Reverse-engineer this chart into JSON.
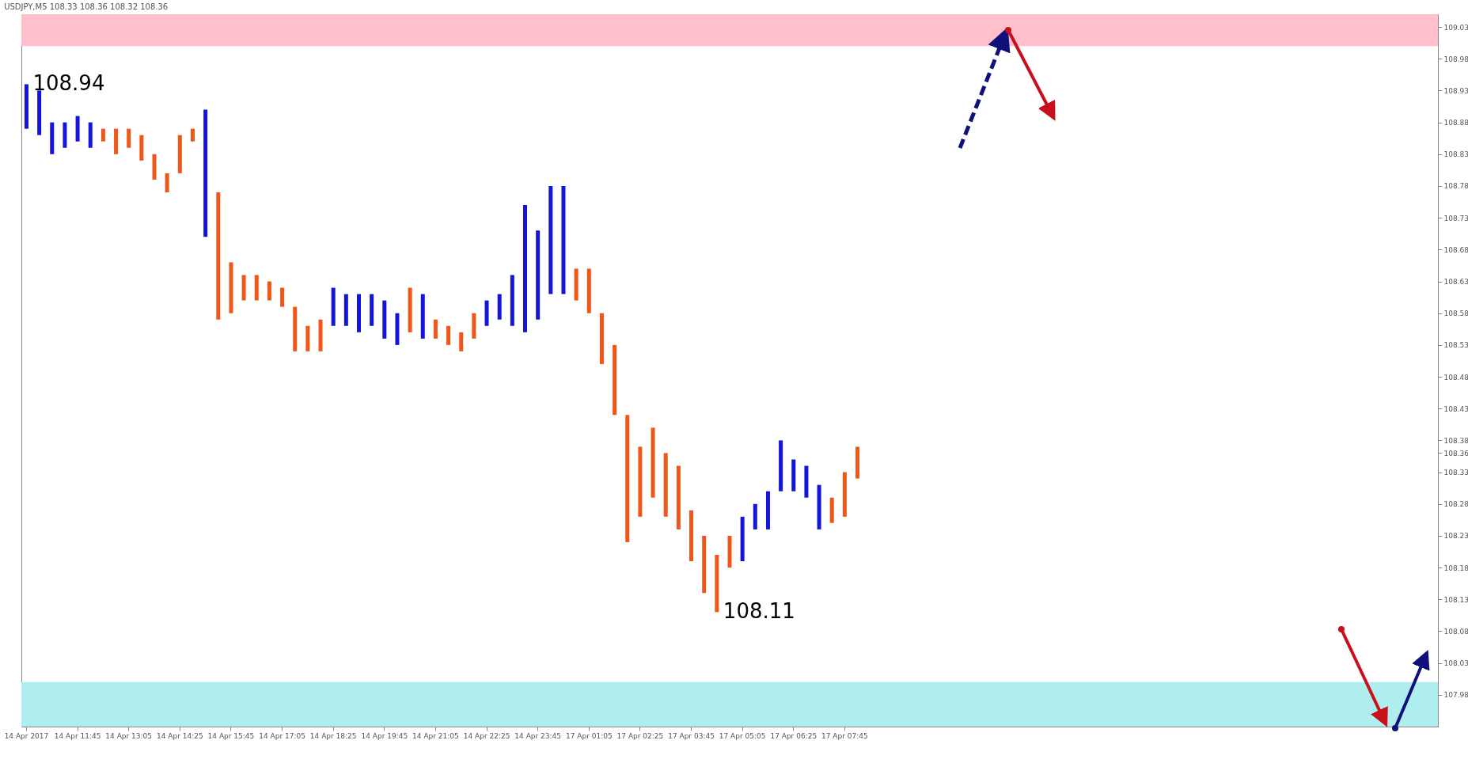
{
  "chart_data": {
    "type": "bar",
    "title": "USDJPY,M5 108.33 108.36 108.32 108.36",
    "categories": [
      "14 Apr 2017",
      null,
      null,
      null,
      "14 Apr 11:45",
      null,
      null,
      null,
      "14 Apr 13:05",
      null,
      null,
      null,
      "14 Apr 14:25",
      null,
      null,
      null,
      "14 Apr 15:45",
      null,
      null,
      null,
      "14 Apr 17:05",
      null,
      null,
      null,
      "14 Apr 18:25",
      null,
      null,
      null,
      "14 Apr 19:45",
      null,
      null,
      null,
      "14 Apr 21:05",
      null,
      null,
      null,
      "14 Apr 22:25",
      null,
      null,
      null,
      "14 Apr 23:45",
      null,
      null,
      null,
      "17 Apr 01:05",
      null,
      null,
      null,
      "17 Apr 02:25",
      null,
      null,
      null,
      "17 Apr 03:45",
      null,
      null,
      null,
      "17 Apr 05:05",
      null,
      null,
      null,
      "17 Apr 06:25",
      null,
      null,
      null,
      "17 Apr 07:45",
      null,
      null,
      null,
      null,
      null,
      null,
      null,
      null,
      null,
      null,
      null,
      null,
      null,
      null,
      null,
      null,
      null,
      null,
      null,
      null,
      null,
      null,
      null,
      null,
      null,
      null,
      null,
      null,
      null,
      null,
      null,
      null,
      null,
      null,
      null,
      null,
      null,
      null,
      null,
      null,
      null,
      null,
      null,
      null,
      null,
      null
    ],
    "base": [
      108.87,
      108.86,
      108.83,
      108.84,
      108.85,
      108.84,
      108.85,
      108.83,
      108.84,
      108.82,
      108.79,
      108.77,
      108.8,
      108.85,
      108.7,
      108.57,
      108.58,
      108.6,
      108.6,
      108.6,
      108.59,
      108.52,
      108.52,
      108.52,
      108.56,
      108.56,
      108.55,
      108.56,
      108.54,
      108.53,
      108.55,
      108.54,
      108.54,
      108.53,
      108.52,
      108.54,
      108.56,
      108.57,
      108.56,
      108.55,
      108.57,
      108.61,
      108.61,
      108.6,
      108.58,
      108.5,
      108.42,
      108.22,
      108.26,
      108.29,
      108.26,
      108.24,
      108.19,
      108.14,
      108.11,
      108.18,
      108.19,
      108.24,
      108.24,
      108.3,
      108.3,
      108.29,
      108.24,
      108.25,
      108.26,
      108.32,
      null,
      null,
      null,
      null,
      null,
      null,
      null,
      null,
      null,
      null,
      null,
      null,
      null,
      null,
      null,
      null,
      null,
      null,
      null,
      null,
      null,
      null,
      null,
      null,
      null,
      null,
      null,
      null,
      null,
      null,
      null,
      null,
      null,
      null,
      null,
      null,
      null,
      null,
      null,
      null,
      null,
      null,
      null,
      null,
      null
    ],
    "values": [
      0.07,
      0.07,
      0.05,
      0.04,
      0.04,
      0.04,
      0.02,
      0.04,
      0.03,
      0.04,
      0.04,
      0.03,
      0.06,
      0.02,
      0.2,
      0.2,
      0.08,
      0.04,
      0.04,
      0.03,
      0.03,
      0.07,
      0.04,
      0.05,
      0.06,
      0.05,
      0.06,
      0.05,
      0.06,
      0.05,
      0.07,
      0.07,
      0.03,
      0.03,
      0.03,
      0.04,
      0.04,
      0.04,
      0.08,
      0.2,
      0.14,
      0.17,
      0.17,
      0.05,
      0.07,
      0.08,
      0.11,
      0.2,
      0.11,
      0.11,
      0.1,
      0.1,
      0.08,
      0.09,
      0.09,
      0.05,
      0.07,
      0.04,
      0.06,
      0.08,
      0.05,
      0.05,
      0.07,
      0.04,
      0.07,
      0.05,
      null,
      null,
      null,
      null,
      null,
      null,
      null,
      null,
      null,
      null,
      null,
      null,
      null,
      null,
      null,
      null,
      null,
      null,
      null,
      null,
      null,
      null,
      null,
      null,
      null,
      null,
      null,
      null,
      null,
      null,
      null,
      null,
      null,
      null,
      null,
      null,
      null,
      null,
      null,
      null,
      null,
      null,
      null,
      null,
      null
    ],
    "colors": [
      "#1414dc",
      "#1414dc",
      "#1414dc",
      "#1414dc",
      "#1414dc",
      "#1414dc",
      "#f0561a",
      "#f0561a",
      "#f0561a",
      "#f0561a",
      "#f0561a",
      "#f0561a",
      "#f0561a",
      "#f0561a",
      "#1414dc",
      "#f0561a",
      "#f0561a",
      "#f0561a",
      "#f0561a",
      "#f0561a",
      "#f0561a",
      "#f0561a",
      "#f0561a",
      "#f0561a",
      "#1414dc",
      "#1414dc",
      "#1414dc",
      "#1414dc",
      "#1414dc",
      "#1414dc",
      "#f0561a",
      "#1414dc",
      "#f0561a",
      "#f0561a",
      "#f0561a",
      "#f0561a",
      "#1414dc",
      "#1414dc",
      "#1414dc",
      "#1414dc",
      "#1414dc",
      "#1414dc",
      "#1414dc",
      "#f0561a",
      "#f0561a",
      "#f0561a",
      "#f0561a",
      "#f0561a",
      "#f0561a",
      "#f0561a",
      "#f0561a",
      "#f0561a",
      "#f0561a",
      "#f0561a",
      "#f0561a",
      "#f0561a",
      "#1414dc",
      "#1414dc",
      "#1414dc",
      "#1414dc",
      "#1414dc",
      "#1414dc",
      "#1414dc",
      "#f0561a",
      "#f0561a",
      "#f0561a",
      null,
      null,
      null,
      null,
      null,
      null,
      null,
      null,
      null,
      null,
      null,
      null,
      null,
      null,
      null,
      null,
      null,
      null,
      null,
      null,
      null,
      null,
      null,
      null,
      null,
      null,
      null,
      null,
      null,
      null,
      null,
      null,
      null,
      null,
      null,
      null,
      null,
      null,
      null,
      null,
      null,
      null,
      null,
      null,
      null
    ],
    "ylim": [
      107.93,
      109.05
    ],
    "yticks": [
      107.98,
      108.03,
      108.08,
      108.13,
      108.18,
      108.23,
      108.28,
      108.33,
      {
        "value": 108.36,
        "label": "108.36"
      },
      108.38,
      108.43,
      108.48,
      108.53,
      108.58,
      108.63,
      108.68,
      108.73,
      108.78,
      108.83,
      108.88,
      108.93,
      108.98,
      109.03
    ],
    "bands": [
      {
        "axis": "y",
        "from": 109.0,
        "to": 109.05,
        "color": "#ffc0cb"
      },
      {
        "axis": "y",
        "from": 107.93,
        "to": 108.0,
        "color": "#afeeee"
      }
    ],
    "annotations": [
      "108.94",
      "108.11"
    ]
  }
}
